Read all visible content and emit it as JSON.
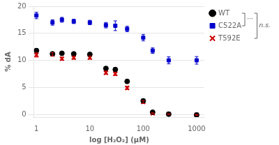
{
  "chart_data": {
    "type": "scatter",
    "xlabel": "log [H₂O₂] (μM)",
    "ylabel": "% dA",
    "log": "x",
    "x": [
      1,
      2,
      3,
      5,
      10,
      20,
      30,
      50,
      100,
      150,
      300,
      1000
    ],
    "xlim": [
      0.9,
      1400
    ],
    "xticks": [
      1,
      10,
      100,
      1000
    ],
    "ylim": [
      -0.5,
      20
    ],
    "yticks": [
      0,
      5,
      10,
      15,
      20
    ],
    "grid": "y",
    "legend": "right",
    "series": [
      {
        "name": "WT",
        "color": "#000000",
        "marker": "circle",
        "values": [
          11.8,
          11.2,
          11.3,
          11.2,
          11.1,
          8.5,
          8.3,
          6.1,
          2.5,
          0.4,
          0.05,
          -0.1
        ],
        "errors": [
          0.4,
          0.3,
          0.3,
          0.3,
          0.3,
          0.3,
          0.3,
          0.3,
          0.25,
          0.15,
          0.05,
          0.05
        ]
      },
      {
        "name": "C522A",
        "color": "#0000cc",
        "marker": "square",
        "values": [
          18.3,
          17.0,
          17.5,
          17.2,
          17.0,
          16.5,
          16.4,
          15.8,
          14.2,
          11.8,
          10.0,
          10.0
        ],
        "errors": [
          0.6,
          0.5,
          0.45,
          0.4,
          0.4,
          0.5,
          0.9,
          0.5,
          0.6,
          0.5,
          0.65,
          0.7
        ]
      },
      {
        "name": "T592E",
        "color": "#cc0000",
        "marker": "x",
        "values": [
          11.0,
          11.1,
          10.3,
          10.5,
          10.5,
          7.7,
          7.5,
          4.9,
          2.3,
          0.2,
          0.05,
          -0.1
        ],
        "errors": [
          0.4,
          0.3,
          0.3,
          0.3,
          0.3,
          0.3,
          0.3,
          0.3,
          0.25,
          0.1,
          0.05,
          0.05
        ]
      }
    ],
    "annotations": [
      {
        "text": "···",
        "series": [
          "WT",
          "C522A"
        ]
      },
      {
        "text": "n.s.",
        "series": [
          "WT",
          "C522A",
          "T592E"
        ]
      }
    ]
  }
}
